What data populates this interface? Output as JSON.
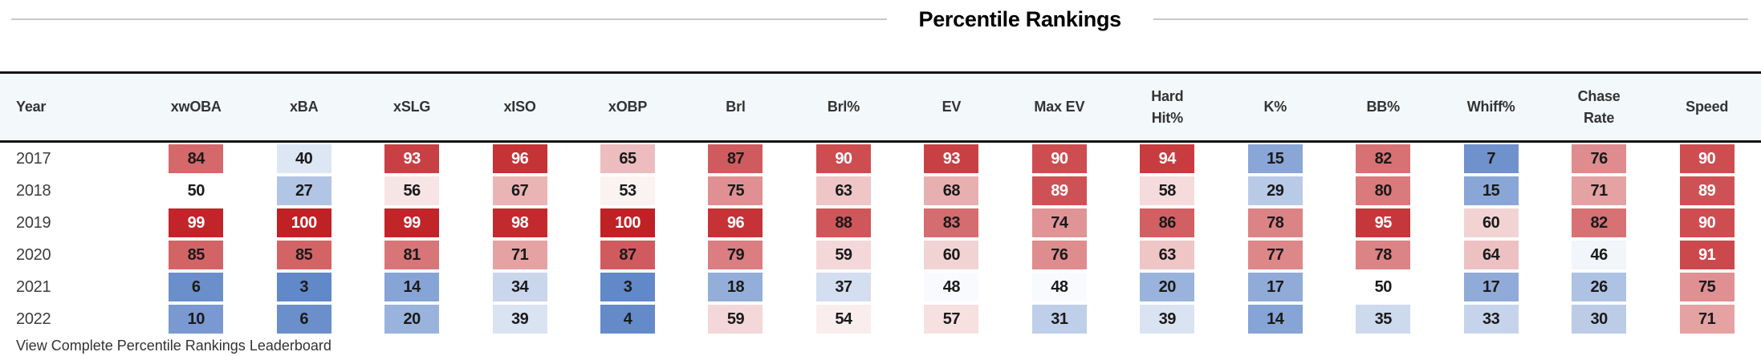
{
  "title": "Percentile Rankings",
  "table": {
    "columns": [
      "Year",
      "xwOBA",
      "xBA",
      "xSLG",
      "xISO",
      "xOBP",
      "Brl",
      "Brl%",
      "EV",
      "Max EV",
      "Hard\nHit%",
      "K%",
      "BB%",
      "Whiff%",
      "Chase\nRate",
      "Speed"
    ],
    "rows": [
      {
        "year": "2017",
        "values": [
          84,
          40,
          93,
          96,
          65,
          87,
          90,
          93,
          90,
          94,
          15,
          82,
          7,
          76,
          90
        ]
      },
      {
        "year": "2018",
        "values": [
          50,
          27,
          56,
          67,
          53,
          75,
          63,
          68,
          89,
          58,
          29,
          80,
          15,
          71,
          89
        ]
      },
      {
        "year": "2019",
        "values": [
          99,
          100,
          99,
          98,
          100,
          96,
          88,
          83,
          74,
          86,
          78,
          95,
          60,
          82,
          90
        ]
      },
      {
        "year": "2020",
        "values": [
          85,
          85,
          81,
          71,
          87,
          79,
          59,
          60,
          76,
          63,
          77,
          78,
          64,
          46,
          91
        ]
      },
      {
        "year": "2021",
        "values": [
          6,
          3,
          14,
          34,
          3,
          18,
          37,
          48,
          48,
          20,
          17,
          50,
          17,
          26,
          75
        ]
      },
      {
        "year": "2022",
        "values": [
          10,
          6,
          20,
          39,
          4,
          59,
          54,
          57,
          31,
          39,
          14,
          35,
          33,
          30,
          71
        ]
      }
    ]
  },
  "colors": {
    "scale_high_red": "#c02125",
    "scale_low_blue": "#5780c4",
    "scale_mid": "#ffffff",
    "white_text_min": 89,
    "header_bg": "#f3f8fa",
    "border_dark": "#141414",
    "rule_gray": "#c9c9c9"
  },
  "footer": {
    "link_text": "View Complete Percentile Rankings Leaderboard"
  }
}
